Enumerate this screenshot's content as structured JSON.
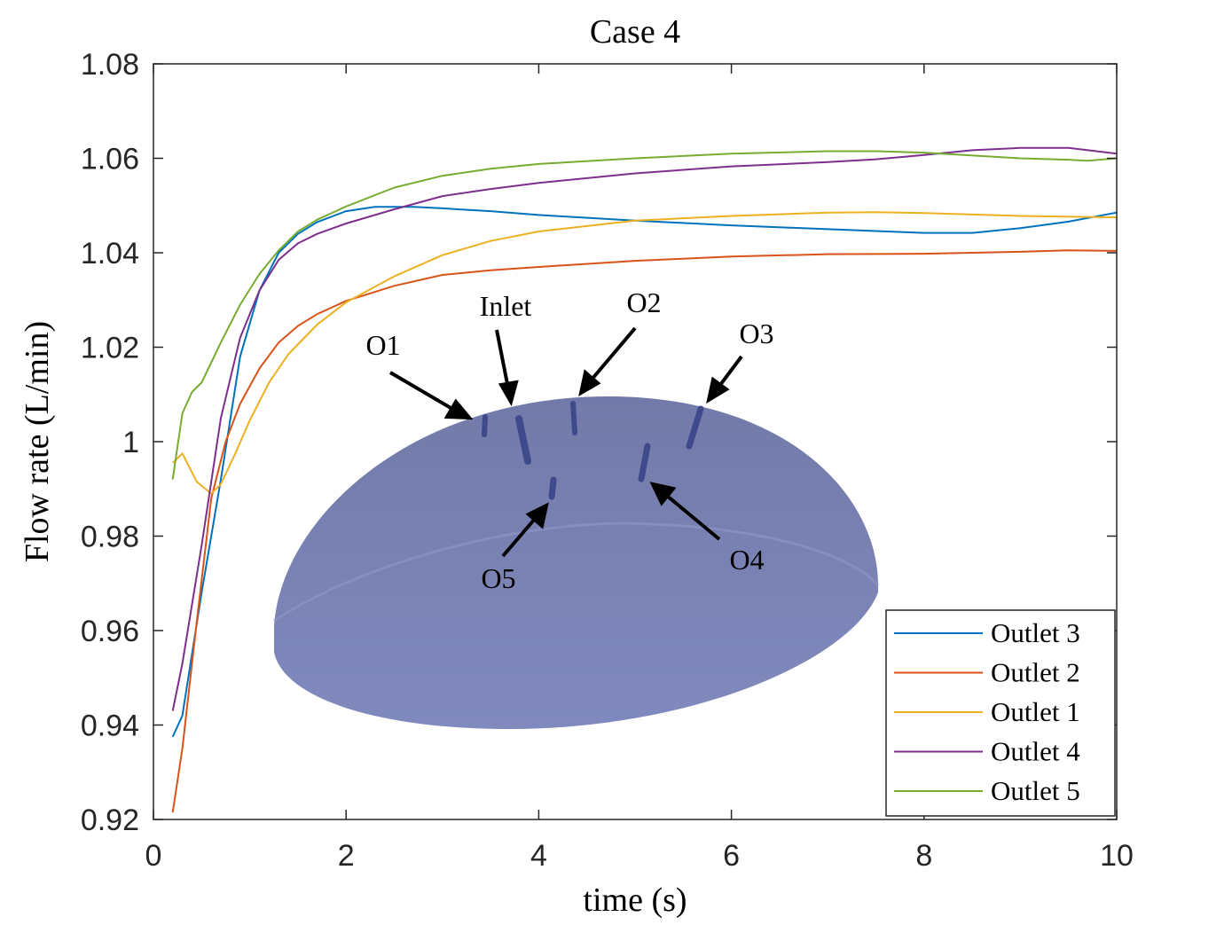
{
  "chart_data": {
    "type": "line",
    "title": "Case 4",
    "xlabel": "time (s)",
    "ylabel": "Flow rate (L/min)",
    "xlim": [
      0,
      10
    ],
    "ylim": [
      0.92,
      1.08
    ],
    "xticks": [
      0,
      2,
      4,
      6,
      8,
      10
    ],
    "yticks": [
      0.92,
      0.94,
      0.96,
      0.98,
      1.0,
      1.02,
      1.04,
      1.06,
      1.08
    ],
    "xtick_labels": [
      "0",
      "2",
      "4",
      "6",
      "8",
      "10"
    ],
    "ytick_labels": [
      "0.92",
      "0.94",
      "0.96",
      "0.98",
      "1",
      "1.02",
      "1.04",
      "1.06",
      "1.08"
    ],
    "grid": false,
    "legend_position": "bottom-right",
    "series": [
      {
        "name": "Outlet 3",
        "color": "#0072BD",
        "x": [
          0.2,
          0.3,
          0.5,
          0.7,
          0.9,
          1.1,
          1.3,
          1.5,
          1.7,
          2.0,
          2.3,
          2.7,
          3.0,
          3.5,
          4.0,
          5.0,
          6.0,
          7.0,
          7.5,
          8.0,
          8.5,
          9.0,
          9.5,
          10.0
        ],
        "y": [
          0.9375,
          0.942,
          0.968,
          0.992,
          1.018,
          1.032,
          1.04,
          1.044,
          1.0465,
          1.0488,
          1.0497,
          1.0497,
          1.0494,
          1.0488,
          1.048,
          1.0468,
          1.0458,
          1.045,
          1.0446,
          1.0442,
          1.0442,
          1.0452,
          1.0466,
          1.0485
        ]
      },
      {
        "name": "Outlet 2",
        "color": "#D95319",
        "x": [
          0.2,
          0.3,
          0.45,
          0.6,
          0.75,
          0.9,
          1.1,
          1.3,
          1.5,
          1.7,
          2.0,
          2.5,
          3.0,
          3.5,
          4.0,
          5.0,
          6.0,
          7.0,
          8.0,
          9.0,
          9.5,
          10.0
        ],
        "y": [
          0.9215,
          0.935,
          0.962,
          0.988,
          1.0,
          1.008,
          1.0155,
          1.021,
          1.0245,
          1.027,
          1.0298,
          1.033,
          1.0353,
          1.0363,
          1.037,
          1.0383,
          1.0392,
          1.0397,
          1.0398,
          1.0402,
          1.0405,
          1.0404
        ]
      },
      {
        "name": "Outlet 1",
        "color": "#EDB120",
        "x": [
          0.2,
          0.3,
          0.45,
          0.6,
          0.7,
          0.85,
          1.0,
          1.2,
          1.4,
          1.7,
          2.0,
          2.5,
          3.0,
          3.5,
          4.0,
          5.0,
          6.0,
          7.0,
          7.5,
          8.0,
          9.0,
          10.0
        ],
        "y": [
          0.9955,
          0.9975,
          0.9915,
          0.989,
          0.991,
          0.9975,
          1.0045,
          1.0125,
          1.0185,
          1.0248,
          1.0295,
          1.035,
          1.0395,
          1.0425,
          1.0445,
          1.0468,
          1.0478,
          1.0485,
          1.0486,
          1.0484,
          1.0478,
          1.0475
        ]
      },
      {
        "name": "Outlet 4",
        "color": "#7E2F8E",
        "x": [
          0.2,
          0.3,
          0.5,
          0.7,
          0.9,
          1.1,
          1.3,
          1.5,
          1.7,
          2.0,
          2.5,
          3.0,
          3.5,
          4.0,
          5.0,
          6.0,
          7.0,
          7.5,
          8.0,
          8.5,
          9.0,
          9.5,
          10.0
        ],
        "y": [
          0.943,
          0.953,
          0.978,
          1.005,
          1.022,
          1.032,
          1.0385,
          1.042,
          1.044,
          1.0462,
          1.0492,
          1.052,
          1.0535,
          1.0548,
          1.0568,
          1.0583,
          1.0592,
          1.0598,
          1.0607,
          1.0617,
          1.0622,
          1.0622,
          1.061
        ]
      },
      {
        "name": "Outlet 5",
        "color": "#77AC30",
        "x": [
          0.2,
          0.3,
          0.4,
          0.5,
          0.7,
          0.9,
          1.1,
          1.3,
          1.5,
          1.7,
          2.0,
          2.5,
          3.0,
          3.5,
          4.0,
          5.0,
          6.0,
          7.0,
          7.5,
          8.0,
          9.0,
          9.5,
          9.7,
          10.0
        ],
        "y": [
          0.992,
          1.006,
          1.0105,
          1.0125,
          1.021,
          1.029,
          1.0355,
          1.0405,
          1.0445,
          1.047,
          1.0498,
          1.0538,
          1.0563,
          1.0578,
          1.0588,
          1.06,
          1.061,
          1.0615,
          1.0615,
          1.0612,
          1.06,
          1.0597,
          1.0595,
          1.06
        ]
      }
    ],
    "inset": {
      "description": "3D hemisphere showing inlet and outlet locations",
      "fill_color": "#7A82B8",
      "port_color": "#3F4A8C",
      "labels": {
        "o1": "O1",
        "inlet": "Inlet",
        "o2": "O2",
        "o3": "O3",
        "o4": "O4",
        "o5": "O5"
      }
    }
  }
}
